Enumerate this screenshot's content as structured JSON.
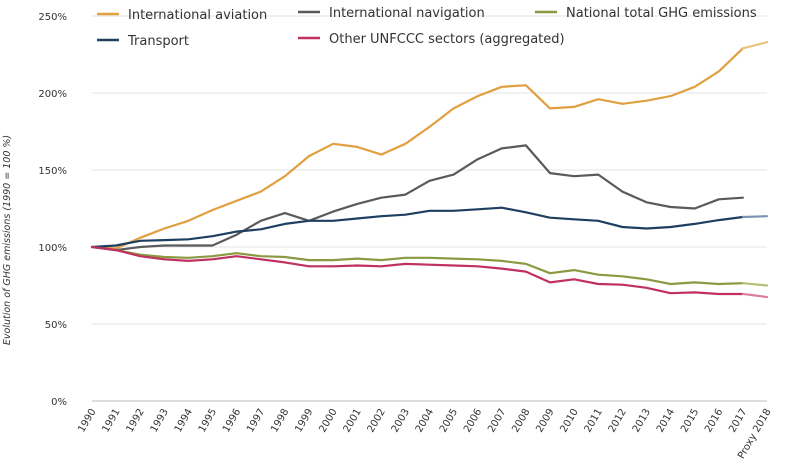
{
  "chart_data": {
    "type": "line",
    "title": "",
    "xlabel": "",
    "ylabel": "Evolution of GHG emissions (1990 = 100 %)",
    "ylim": [
      0,
      250
    ],
    "yticks": [
      0,
      50,
      100,
      150,
      200,
      250
    ],
    "ytick_labels": [
      "0%",
      "50%",
      "100%",
      "150%",
      "200%",
      "250%"
    ],
    "grid": true,
    "legend_position": "top",
    "categories": [
      "1990",
      "1991",
      "1992",
      "1993",
      "1994",
      "1995",
      "1996",
      "1997",
      "1998",
      "1999",
      "2000",
      "2001",
      "2002",
      "2003",
      "2004",
      "2005",
      "2006",
      "2007",
      "2008",
      "2009",
      "2010",
      "2011",
      "2012",
      "2013",
      "2014",
      "2015",
      "2016",
      "2017",
      "Proxy 2018"
    ],
    "series": [
      {
        "name": "International aviation",
        "color": "#e0a040",
        "proxy_color": "#ecc47e",
        "values": [
          100,
          99,
          106,
          112,
          117,
          124,
          130,
          136,
          146,
          159,
          167,
          165,
          160,
          167,
          178,
          190,
          198,
          204,
          205,
          190,
          191,
          196,
          193,
          195,
          198,
          204,
          214,
          229,
          233
        ]
      },
      {
        "name": "International navigation",
        "color": "#5a5a5a",
        "proxy_color": "#8a8a8a",
        "values": [
          100,
          98,
          100,
          101,
          101,
          101,
          108,
          117,
          122,
          117,
          123,
          128,
          132,
          134,
          143,
          147,
          157,
          164,
          166,
          148,
          146,
          147,
          136,
          129,
          126,
          125,
          131,
          132,
          null
        ]
      },
      {
        "name": "National total GHG emissions",
        "color": "#8a9a40",
        "proxy_color": "#b4c078",
        "values": [
          100,
          98,
          95,
          93.5,
          93,
          94,
          96,
          94,
          93.5,
          91.5,
          91.5,
          92.5,
          91.5,
          93,
          93,
          92.5,
          92,
          91,
          89,
          83,
          85,
          82,
          81,
          79,
          76,
          77,
          76,
          76.5,
          75
        ]
      },
      {
        "name": "Transport",
        "color": "#1f3f60",
        "proxy_color": "#7a93b0",
        "values": [
          100,
          101,
          104,
          104.5,
          105,
          107,
          110,
          111.5,
          115,
          117,
          117,
          118.5,
          120,
          121,
          123.5,
          123.5,
          124.5,
          125.5,
          122.5,
          119,
          118,
          117,
          113,
          112,
          113,
          115,
          117.5,
          119.5,
          120
        ]
      },
      {
        "name": "Other UNFCCC sectors (aggregated)",
        "color": "#c03060",
        "proxy_color": "#d87e9e",
        "values": [
          100,
          98,
          94,
          92,
          91,
          92,
          94,
          92,
          90,
          87.5,
          87.5,
          88,
          87.5,
          89,
          88.5,
          88,
          87.5,
          86,
          84,
          77,
          79,
          76,
          75.5,
          73.5,
          70,
          70.5,
          69.5,
          69.5,
          67.5
        ]
      }
    ]
  }
}
